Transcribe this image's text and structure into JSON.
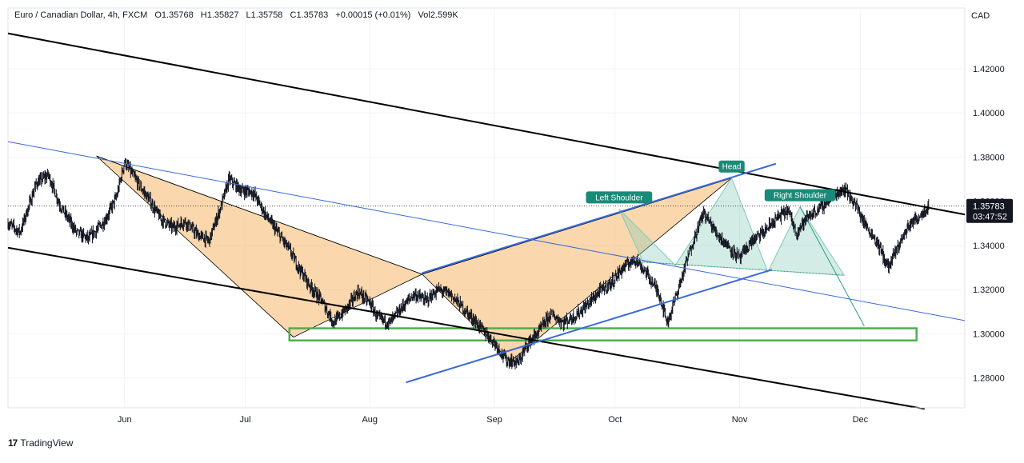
{
  "header": {
    "symbol": "Euro / Canadian Dollar, 4h, FXCM",
    "open": "O1.35768",
    "high": "H1.35827",
    "low": "L1.35758",
    "close": "C1.35783",
    "change": "+0.00015 (+0.01%)",
    "volume": "Vol2.599K"
  },
  "brand": {
    "name": "TradingView"
  },
  "axis": {
    "currency": "CAD"
  },
  "price_tag": {
    "price": "1.35783",
    "countdown": "03:47:52"
  },
  "labels": {
    "head": "Head",
    "left_shoulder": "Left Shoulder",
    "right_shoulder": "Right Shoulder"
  },
  "colors": {
    "candle": "#131722",
    "trend_black": "#000000",
    "trend_blue": "#3a6ad6",
    "harmonic_fill": "#f5b76a",
    "hs_fill": "#80c9b4",
    "zone_green": "#4caf50",
    "label_bg": "#1a8a78"
  },
  "chart_data": {
    "type": "candlestick",
    "title": "Euro / Canadian Dollar, 4h, FXCM",
    "ylabel": "CAD",
    "ylim": [
      1.2665,
      1.4475
    ],
    "xlim": [
      "2024-05-03",
      "2024-12-27"
    ],
    "y_ticks": [
      "1.28000",
      "1.30000",
      "1.32000",
      "1.34000",
      "1.36000",
      "1.38000",
      "1.40000",
      "1.42000"
    ],
    "x_ticks": [
      {
        "label": "Jun",
        "date": "2024-06-01"
      },
      {
        "label": "Jul",
        "date": "2024-07-01"
      },
      {
        "label": "Aug",
        "date": "2024-08-01"
      },
      {
        "label": "Sep",
        "date": "2024-09-01"
      },
      {
        "label": "Oct",
        "date": "2024-10-01"
      },
      {
        "label": "Nov",
        "date": "2024-11-01"
      },
      {
        "label": "Dec",
        "date": "2024-12-01"
      }
    ],
    "last_price": 1.35783,
    "price_path": [
      [
        "2024-05-03",
        1.35
      ],
      [
        "2024-05-06",
        1.346
      ],
      [
        "2024-05-10",
        1.368
      ],
      [
        "2024-05-13",
        1.372
      ],
      [
        "2024-05-16",
        1.358
      ],
      [
        "2024-05-20",
        1.346
      ],
      [
        "2024-05-23",
        1.343
      ],
      [
        "2024-05-27",
        1.351
      ],
      [
        "2024-05-30",
        1.362
      ],
      [
        "2024-06-01",
        1.378
      ],
      [
        "2024-06-04",
        1.369
      ],
      [
        "2024-06-07",
        1.361
      ],
      [
        "2024-06-10",
        1.352
      ],
      [
        "2024-06-13",
        1.348
      ],
      [
        "2024-06-16",
        1.351
      ],
      [
        "2024-06-19",
        1.345
      ],
      [
        "2024-06-22",
        1.342
      ],
      [
        "2024-06-25",
        1.358
      ],
      [
        "2024-06-27",
        1.37
      ],
      [
        "2024-06-30",
        1.365
      ],
      [
        "2024-07-03",
        1.364
      ],
      [
        "2024-07-06",
        1.354
      ],
      [
        "2024-07-09",
        1.346
      ],
      [
        "2024-07-12",
        1.338
      ],
      [
        "2024-07-14",
        1.331
      ],
      [
        "2024-07-17",
        1.322
      ],
      [
        "2024-07-20",
        1.315
      ],
      [
        "2024-07-23",
        1.305
      ],
      [
        "2024-07-26",
        1.311
      ],
      [
        "2024-07-29",
        1.319
      ],
      [
        "2024-08-01",
        1.314
      ],
      [
        "2024-08-03",
        1.307
      ],
      [
        "2024-08-06",
        1.305
      ],
      [
        "2024-08-09",
        1.312
      ],
      [
        "2024-08-12",
        1.318
      ],
      [
        "2024-08-15",
        1.315
      ],
      [
        "2024-08-18",
        1.32
      ],
      [
        "2024-08-21",
        1.318
      ],
      [
        "2024-08-24",
        1.312
      ],
      [
        "2024-08-27",
        1.306
      ],
      [
        "2024-08-30",
        1.3
      ],
      [
        "2024-09-01",
        1.296
      ],
      [
        "2024-09-04",
        1.288
      ],
      [
        "2024-09-07",
        1.287
      ],
      [
        "2024-09-09",
        1.295
      ],
      [
        "2024-09-12",
        1.301
      ],
      [
        "2024-09-15",
        1.309
      ],
      [
        "2024-09-18",
        1.305
      ],
      [
        "2024-09-21",
        1.308
      ],
      [
        "2024-09-24",
        1.313
      ],
      [
        "2024-09-27",
        1.319
      ],
      [
        "2024-09-30",
        1.323
      ],
      [
        "2024-10-03",
        1.33
      ],
      [
        "2024-10-06",
        1.334
      ],
      [
        "2024-10-09",
        1.327
      ],
      [
        "2024-10-12",
        1.318
      ],
      [
        "2024-10-14",
        1.305
      ],
      [
        "2024-10-17",
        1.322
      ],
      [
        "2024-10-20",
        1.34
      ],
      [
        "2024-10-23",
        1.355
      ],
      [
        "2024-10-26",
        1.346
      ],
      [
        "2024-10-29",
        1.34
      ],
      [
        "2024-11-01",
        1.334
      ],
      [
        "2024-11-04",
        1.342
      ],
      [
        "2024-11-07",
        1.346
      ],
      [
        "2024-11-10",
        1.352
      ],
      [
        "2024-11-13",
        1.356
      ],
      [
        "2024-11-15",
        1.346
      ],
      [
        "2024-11-18",
        1.353
      ],
      [
        "2024-11-21",
        1.357
      ],
      [
        "2024-11-24",
        1.362
      ],
      [
        "2024-11-27",
        1.366
      ],
      [
        "2024-11-30",
        1.358
      ],
      [
        "2024-12-02",
        1.35
      ],
      [
        "2024-12-05",
        1.342
      ],
      [
        "2024-12-08",
        1.33
      ],
      [
        "2024-12-10",
        1.338
      ],
      [
        "2024-12-13",
        1.349
      ],
      [
        "2024-12-16",
        1.354
      ],
      [
        "2024-12-18",
        1.358
      ]
    ],
    "trend_lines": [
      {
        "name": "upper-channel",
        "color": "black",
        "from": [
          "2024-05-03",
          1.436
        ],
        "to": [
          "2024-12-27",
          1.354
        ]
      },
      {
        "name": "lower-channel",
        "color": "black",
        "from": [
          "2024-05-03",
          1.339
        ],
        "to": [
          "2024-12-17",
          1.266
        ]
      },
      {
        "name": "mid-channel",
        "color": "blue-thin",
        "from": [
          "2024-05-03",
          1.387
        ],
        "to": [
          "2024-12-27",
          1.306
        ]
      },
      {
        "name": "support-rising",
        "color": "blue",
        "from": [
          "2024-08-10",
          1.278
        ],
        "to": [
          "2024-11-09",
          1.329
        ]
      },
      {
        "name": "wedge-top",
        "color": "blue",
        "from": [
          "2024-08-14",
          1.3275
        ],
        "to": [
          "2024-11-10",
          1.377
        ]
      }
    ],
    "support_zone": {
      "from": "2024-07-12",
      "to": "2024-12-15",
      "ylow": 1.297,
      "yhigh": 1.3025
    },
    "harmonic_pattern": [
      [
        "2024-05-25",
        1.3805
      ],
      [
        "2024-07-13",
        1.2985
      ],
      [
        "2024-08-14",
        1.327
      ],
      [
        "2024-09-05",
        1.2875
      ],
      [
        "2024-10-30",
        1.3705
      ]
    ],
    "head_and_shoulders": [
      [
        "2024-10-08",
        1.3325
      ],
      [
        "2024-10-02",
        1.3565
      ],
      [
        "2024-10-16",
        1.331
      ],
      [
        "2024-10-30",
        1.3705
      ],
      [
        "2024-11-08",
        1.328
      ],
      [
        "2024-11-16",
        1.3575
      ],
      [
        "2024-11-27",
        1.3265
      ]
    ],
    "projection": [
      [
        "2024-11-16",
        1.3575
      ],
      [
        "2024-12-02",
        1.3035
      ]
    ],
    "annotations": [
      {
        "text": "Left Shoulder",
        "date": "2024-10-02",
        "price": 1.3565
      },
      {
        "text": "Head",
        "date": "2024-10-30",
        "price": 1.3705
      },
      {
        "text": "Right Shoulder",
        "date": "2024-11-16",
        "price": 1.3575
      }
    ]
  }
}
